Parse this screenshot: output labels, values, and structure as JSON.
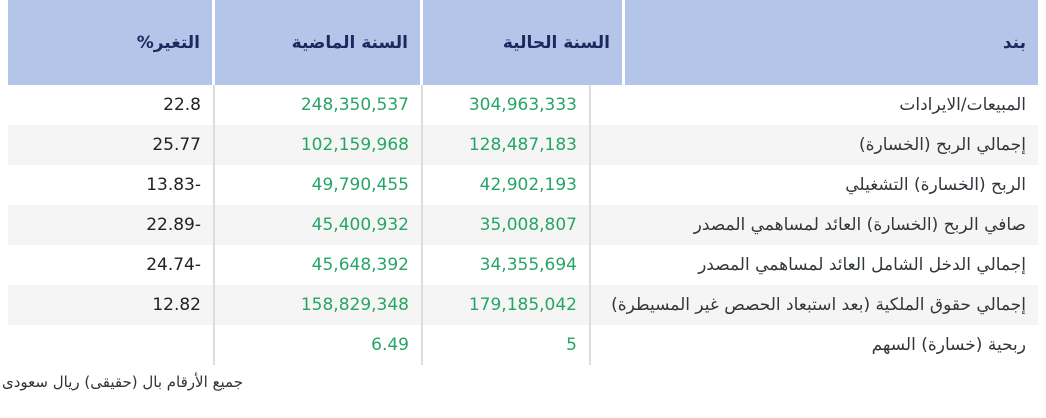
{
  "table": {
    "columns": {
      "item": "بند",
      "current_year": "السنة الحالية",
      "previous_year": "السنة الماضية",
      "change": "التغير%"
    },
    "rows": [
      {
        "item": "المبيعات/الايرادات",
        "current": "304,963,333",
        "previous": "248,350,537",
        "change": "22.8"
      },
      {
        "item": "إجمالي الربح (الخسارة)",
        "current": "128,487,183",
        "previous": "102,159,968",
        "change": "25.77"
      },
      {
        "item": "الربح (الخسارة) التشغيلي",
        "current": "42,902,193",
        "previous": "49,790,455",
        "change": "13.83-"
      },
      {
        "item": "صافي الربح (الخسارة) العائد لمساهمي المصدر",
        "current": "35,008,807",
        "previous": "45,400,932",
        "change": "22.89-"
      },
      {
        "item": "إجمالي الدخل الشامل العائد لمساهمي المصدر",
        "current": "34,355,694",
        "previous": "45,648,392",
        "change": "24.74-"
      },
      {
        "item": "إجمالي حقوق الملكية (بعد استبعاد الحصص غير المسيطرة)",
        "current": "179,185,042",
        "previous": "158,829,348",
        "change": "12.82"
      },
      {
        "item": "ربحية (خسارة) السهم",
        "current": "5",
        "previous": "6.49",
        "change": ""
      }
    ]
  },
  "footnote": "جميع الأرقام بال (حقيقى) ريال سعودى",
  "colors": {
    "header_bg": "#b4c5ea",
    "header_text": "#1b2a5e",
    "value_green": "#27a567",
    "change_text": "#222222",
    "alt_row_bg": "#f5f5f5",
    "separator": "#dcdcdc"
  }
}
